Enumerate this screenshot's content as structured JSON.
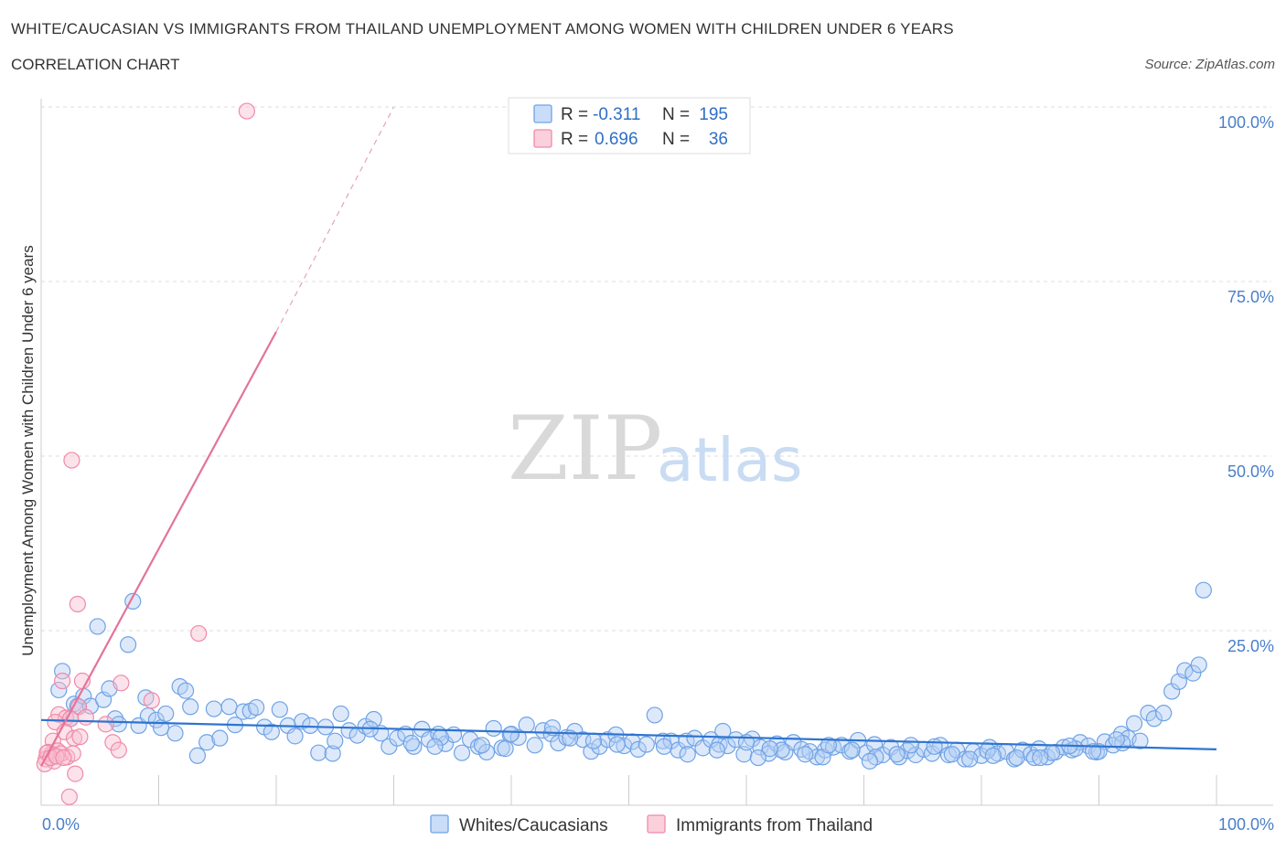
{
  "title": "WHITE/CAUCASIAN VS IMMIGRANTS FROM THAILAND UNEMPLOYMENT AMONG WOMEN WITH CHILDREN UNDER 6 YEARS",
  "subtitle": "CORRELATION CHART",
  "source": "Source: ZipAtlas.com",
  "watermark": {
    "zip": "ZIP",
    "atlas": "atlas"
  },
  "legend": {
    "rows": [
      {
        "r_label": "R =",
        "r_value": "-0.311",
        "n_label": "N =",
        "n_value": "195",
        "color": "#6fa3e6"
      },
      {
        "r_label": "R =",
        "r_value": "0.696",
        "n_label": "N =",
        "n_value": "36",
        "color": "#f08aa8"
      }
    ]
  },
  "bottom_legend": [
    "Whites/Caucasians",
    "Immigrants from Thailand"
  ],
  "chart_data": {
    "type": "scatter",
    "title": "WHITE/CAUCASIAN VS IMMIGRANTS FROM THAILAND UNEMPLOYMENT AMONG WOMEN WITH CHILDREN UNDER 6 YEARS",
    "xlabel": "",
    "ylabel": "Unemployment Among Women with Children Under 6 years",
    "xlim": [
      0,
      100
    ],
    "ylim": [
      0,
      100
    ],
    "x_tick_labels": [
      "0.0%",
      "100.0%"
    ],
    "y_tick_labels": [
      "100.0%",
      "75.0%",
      "50.0%",
      "25.0%"
    ],
    "y_tick_values": [
      100,
      75,
      50,
      25
    ],
    "grid": true,
    "legend_placement": "top-center",
    "series": [
      {
        "name": "Whites/Caucasians",
        "color": "#6fa3e6",
        "trend": {
          "x": [
            0,
            100
          ],
          "y": [
            12.2,
            8.0
          ]
        },
        "points": [
          [
            1.8,
            19.2
          ],
          [
            1.5,
            16.5
          ],
          [
            2.5,
            12.4
          ],
          [
            2.8,
            14.5
          ],
          [
            3.1,
            14.2
          ],
          [
            3.6,
            15.6
          ],
          [
            4.2,
            14.2
          ],
          [
            4.8,
            25.6
          ],
          [
            5.3,
            15.1
          ],
          [
            5.8,
            16.7
          ],
          [
            6.3,
            12.4
          ],
          [
            6.6,
            11.6
          ],
          [
            7.4,
            23.0
          ],
          [
            7.8,
            29.2
          ],
          [
            8.3,
            11.4
          ],
          [
            8.9,
            15.4
          ],
          [
            9.1,
            12.8
          ],
          [
            9.8,
            12.2
          ],
          [
            10.2,
            11.1
          ],
          [
            10.6,
            13.1
          ],
          [
            11.4,
            10.3
          ],
          [
            11.8,
            17.0
          ],
          [
            12.3,
            16.4
          ],
          [
            12.7,
            14.1
          ],
          [
            13.3,
            7.1
          ],
          [
            14.1,
            9.0
          ],
          [
            14.7,
            13.8
          ],
          [
            15.2,
            9.6
          ],
          [
            16.0,
            14.1
          ],
          [
            16.5,
            11.5
          ],
          [
            17.2,
            13.4
          ],
          [
            17.8,
            13.5
          ],
          [
            18.3,
            14.0
          ],
          [
            19.0,
            11.2
          ],
          [
            19.6,
            10.5
          ],
          [
            20.3,
            13.7
          ],
          [
            21.0,
            11.4
          ],
          [
            21.6,
            9.9
          ],
          [
            22.2,
            12.0
          ],
          [
            22.9,
            11.4
          ],
          [
            23.6,
            7.5
          ],
          [
            24.2,
            11.2
          ],
          [
            24.8,
            7.4
          ],
          [
            25.5,
            13.1
          ],
          [
            26.2,
            10.7
          ],
          [
            26.9,
            10.0
          ],
          [
            27.6,
            11.3
          ],
          [
            28.3,
            12.3
          ],
          [
            28.9,
            10.3
          ],
          [
            29.6,
            8.4
          ],
          [
            30.3,
            9.6
          ],
          [
            31.0,
            10.2
          ],
          [
            31.7,
            8.4
          ],
          [
            32.4,
            10.9
          ],
          [
            33.0,
            9.4
          ],
          [
            33.8,
            10.2
          ],
          [
            34.4,
            8.8
          ],
          [
            35.1,
            10.1
          ],
          [
            35.8,
            7.5
          ],
          [
            36.5,
            9.4
          ],
          [
            37.2,
            8.4
          ],
          [
            37.9,
            7.6
          ],
          [
            38.5,
            11.0
          ],
          [
            39.2,
            8.2
          ],
          [
            39.9,
            10.1
          ],
          [
            40.6,
            9.7
          ],
          [
            41.3,
            11.5
          ],
          [
            42.0,
            8.6
          ],
          [
            42.7,
            10.7
          ],
          [
            43.4,
            10.2
          ],
          [
            44.0,
            8.9
          ],
          [
            44.7,
            9.7
          ],
          [
            45.4,
            10.6
          ],
          [
            46.1,
            9.4
          ],
          [
            46.8,
            7.7
          ],
          [
            47.5,
            8.4
          ],
          [
            48.2,
            9.4
          ],
          [
            48.9,
            10.1
          ],
          [
            49.6,
            8.5
          ],
          [
            50.3,
            9.1
          ],
          [
            50.8,
            8.0
          ],
          [
            51.5,
            8.7
          ],
          [
            52.2,
            12.9
          ],
          [
            52.9,
            9.2
          ],
          [
            53.6,
            9.2
          ],
          [
            54.2,
            7.9
          ],
          [
            54.9,
            9.2
          ],
          [
            55.6,
            9.6
          ],
          [
            56.3,
            8.2
          ],
          [
            57.0,
            9.4
          ],
          [
            57.7,
            8.7
          ],
          [
            58.4,
            8.5
          ],
          [
            59.1,
            9.4
          ],
          [
            59.8,
            7.3
          ],
          [
            60.5,
            9.5
          ],
          [
            61.2,
            8.3
          ],
          [
            61.9,
            7.4
          ],
          [
            62.6,
            8.8
          ],
          [
            63.3,
            7.6
          ],
          [
            64.0,
            9.0
          ],
          [
            64.7,
            8.0
          ],
          [
            65.4,
            7.7
          ],
          [
            66.0,
            6.9
          ],
          [
            66.7,
            7.9
          ],
          [
            67.4,
            8.3
          ],
          [
            68.1,
            8.6
          ],
          [
            68.8,
            7.7
          ],
          [
            69.5,
            9.3
          ],
          [
            70.2,
            7.5
          ],
          [
            70.9,
            8.7
          ],
          [
            71.6,
            7.2
          ],
          [
            72.3,
            8.3
          ],
          [
            73.0,
            6.9
          ],
          [
            73.7,
            7.8
          ],
          [
            74.4,
            7.2
          ],
          [
            75.1,
            8.0
          ],
          [
            75.8,
            7.4
          ],
          [
            76.5,
            8.6
          ],
          [
            77.2,
            7.2
          ],
          [
            77.9,
            7.9
          ],
          [
            78.6,
            6.6
          ],
          [
            79.3,
            7.7
          ],
          [
            80.0,
            7.1
          ],
          [
            80.7,
            8.3
          ],
          [
            81.4,
            7.4
          ],
          [
            82.1,
            7.7
          ],
          [
            82.8,
            6.6
          ],
          [
            83.5,
            7.9
          ],
          [
            84.2,
            7.3
          ],
          [
            84.9,
            8.1
          ],
          [
            85.6,
            6.9
          ],
          [
            86.3,
            7.6
          ],
          [
            87.0,
            8.3
          ],
          [
            87.7,
            7.9
          ],
          [
            88.4,
            9.0
          ],
          [
            89.1,
            8.5
          ],
          [
            89.8,
            7.6
          ],
          [
            90.5,
            9.1
          ],
          [
            91.2,
            8.6
          ],
          [
            91.9,
            10.2
          ],
          [
            92.5,
            9.6
          ],
          [
            93.0,
            11.7
          ],
          [
            93.5,
            9.2
          ],
          [
            94.2,
            13.2
          ],
          [
            94.7,
            12.4
          ],
          [
            95.5,
            13.2
          ],
          [
            96.2,
            16.3
          ],
          [
            96.8,
            17.7
          ],
          [
            97.3,
            19.3
          ],
          [
            98.0,
            18.9
          ],
          [
            98.5,
            20.1
          ],
          [
            98.9,
            30.8
          ],
          [
            28.0,
            10.9
          ],
          [
            34.0,
            9.7
          ],
          [
            40.0,
            10.2
          ],
          [
            45.0,
            9.6
          ],
          [
            58.0,
            10.6
          ],
          [
            63.0,
            7.9
          ],
          [
            69.0,
            7.9
          ],
          [
            74.0,
            8.6
          ],
          [
            80.5,
            7.8
          ],
          [
            86.0,
            7.5
          ],
          [
            90.0,
            7.7
          ],
          [
            92.0,
            8.9
          ],
          [
            55.0,
            7.3
          ],
          [
            60.0,
            9.0
          ],
          [
            66.5,
            6.9
          ],
          [
            71.0,
            6.9
          ],
          [
            77.5,
            7.3
          ],
          [
            83.0,
            6.8
          ],
          [
            88.0,
            8.1
          ],
          [
            91.5,
            9.4
          ],
          [
            25.0,
            9.2
          ],
          [
            31.5,
            8.9
          ],
          [
            37.5,
            8.6
          ],
          [
            43.5,
            11.1
          ],
          [
            49.0,
            8.7
          ],
          [
            53.0,
            8.4
          ],
          [
            57.5,
            7.9
          ],
          [
            62.0,
            8.1
          ],
          [
            67.0,
            8.6
          ],
          [
            72.8,
            7.3
          ],
          [
            76.0,
            8.4
          ],
          [
            81.0,
            7.1
          ],
          [
            84.5,
            6.8
          ],
          [
            87.5,
            8.5
          ],
          [
            89.5,
            7.7
          ],
          [
            70.5,
            6.3
          ],
          [
            79.0,
            6.6
          ],
          [
            85.0,
            6.8
          ],
          [
            65.0,
            7.3
          ],
          [
            61.0,
            6.8
          ],
          [
            47.0,
            9.2
          ],
          [
            39.5,
            8.1
          ],
          [
            33.5,
            8.4
          ]
        ]
      },
      {
        "name": "Immigrants from Thailand",
        "color": "#f08aa8",
        "trend": {
          "x": [
            0,
            20
          ],
          "y": [
            5.6,
            67.8
          ]
        },
        "trend_dashed": {
          "x": [
            20,
            30
          ],
          "y": [
            67.8,
            100
          ]
        },
        "points": [
          [
            17.5,
            99.4
          ],
          [
            2.6,
            49.4
          ],
          [
            3.1,
            28.8
          ],
          [
            13.4,
            24.6
          ],
          [
            3.5,
            17.8
          ],
          [
            1.8,
            17.8
          ],
          [
            6.8,
            17.5
          ],
          [
            9.4,
            15.0
          ],
          [
            3.2,
            14.1
          ],
          [
            1.5,
            13.0
          ],
          [
            2.1,
            12.5
          ],
          [
            1.2,
            11.9
          ],
          [
            2.5,
            12.4
          ],
          [
            5.5,
            11.6
          ],
          [
            2.0,
            10.5
          ],
          [
            6.1,
            9.0
          ],
          [
            2.8,
            9.6
          ],
          [
            3.3,
            9.8
          ],
          [
            1.0,
            9.2
          ],
          [
            6.6,
            7.9
          ],
          [
            0.6,
            7.6
          ],
          [
            1.4,
            7.8
          ],
          [
            2.2,
            6.9
          ],
          [
            0.9,
            7.3
          ],
          [
            0.4,
            6.6
          ],
          [
            1.1,
            6.3
          ],
          [
            1.7,
            7.4
          ],
          [
            0.5,
            7.5
          ],
          [
            0.3,
            5.9
          ],
          [
            0.8,
            6.8
          ],
          [
            1.3,
            7.0
          ],
          [
            2.7,
            7.4
          ],
          [
            1.9,
            6.8
          ],
          [
            2.9,
            4.5
          ],
          [
            2.4,
            1.2
          ],
          [
            3.8,
            12.6
          ]
        ]
      }
    ]
  }
}
